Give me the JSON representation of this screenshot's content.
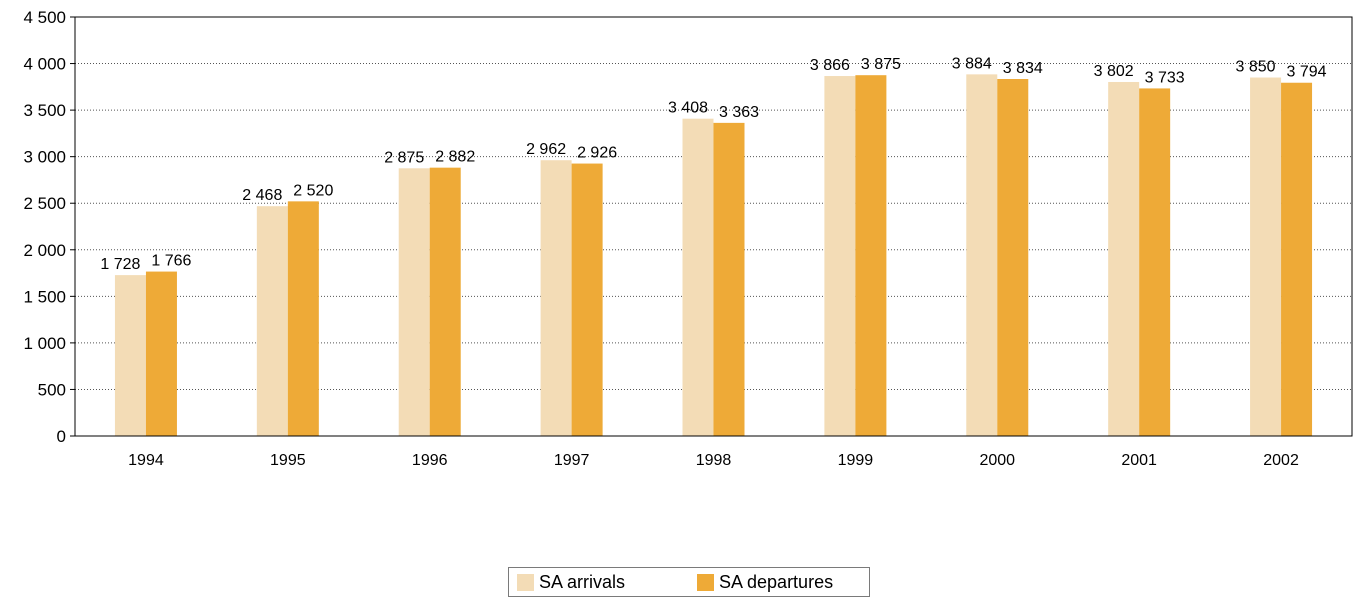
{
  "chart_data": {
    "type": "bar",
    "categories": [
      "1994",
      "1995",
      "1996",
      "1997",
      "1998",
      "1999",
      "2000",
      "2001",
      "2002"
    ],
    "series": [
      {
        "name": "SA arrivals",
        "color": "#f3dcb6",
        "values": [
          1728,
          2468,
          2875,
          2962,
          3408,
          3866,
          3884,
          3802,
          3850
        ],
        "labels": [
          "1 728",
          "2 468",
          "2 875",
          "2 962",
          "3 408",
          "3 866",
          "3 884",
          "3 802",
          "3 850"
        ]
      },
      {
        "name": "SA departures",
        "color": "#eeaa37",
        "values": [
          1766,
          2520,
          2882,
          2926,
          3363,
          3875,
          3834,
          3733,
          3794
        ],
        "labels": [
          "1 766",
          "2 520",
          "2 882",
          "2 926",
          "3 363",
          "3 875",
          "3 834",
          "3 733",
          "3 794"
        ]
      }
    ],
    "yticks": [
      0,
      500,
      1000,
      1500,
      2000,
      2500,
      3000,
      3500,
      4000,
      4500
    ],
    "ytick_labels": [
      "0",
      "500",
      "1 000",
      "1 500",
      "2 000",
      "2 500",
      "3 000",
      "3 500",
      "4 000",
      "4 500"
    ],
    "ylim": [
      0,
      4500
    ],
    "grid": "horizontal dotted",
    "legend_position": "bottom-center",
    "title": "",
    "xlabel": "",
    "ylabel": ""
  }
}
